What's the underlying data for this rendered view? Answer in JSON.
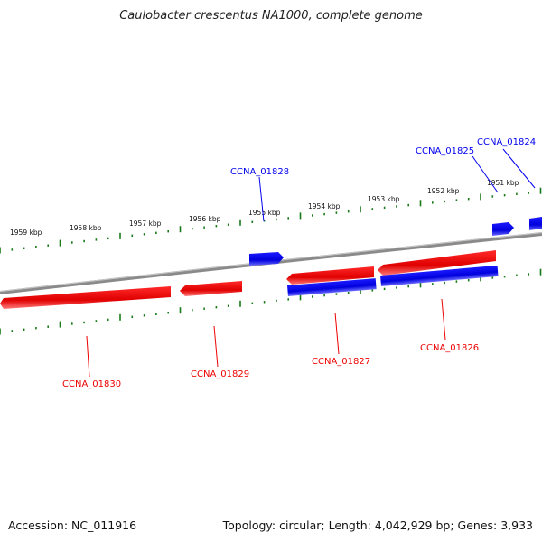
{
  "title": "Caulobacter crescentus NA1000, complete genome",
  "footer": {
    "accession": "Accession: NC_011916",
    "summary": "Topology: circular; Length: 4,042,929 bp; Genes: 3,933"
  },
  "colors": {
    "forward_strand": "#0000ee",
    "reverse_strand": "#ee0000",
    "ticks": "#1a7a1a",
    "backbone": "#888888"
  },
  "kbp_labels": [
    "1959 kbp",
    "1958 kbp",
    "1957 kbp",
    "1956 kbp",
    "1955 kbp",
    "1954 kbp",
    "1953 kbp",
    "1952 kbp",
    "1951 kbp"
  ],
  "genes": [
    {
      "name": "CCNA_01824",
      "strand": "+"
    },
    {
      "name": "CCNA_01825",
      "strand": "+"
    },
    {
      "name": "CCNA_01828",
      "strand": "+"
    },
    {
      "name": "CCNA_01830",
      "strand": "-"
    },
    {
      "name": "CCNA_01829",
      "strand": "-"
    },
    {
      "name": "CCNA_01827",
      "strand": "-"
    },
    {
      "name": "CCNA_01826",
      "strand": "-"
    }
  ]
}
